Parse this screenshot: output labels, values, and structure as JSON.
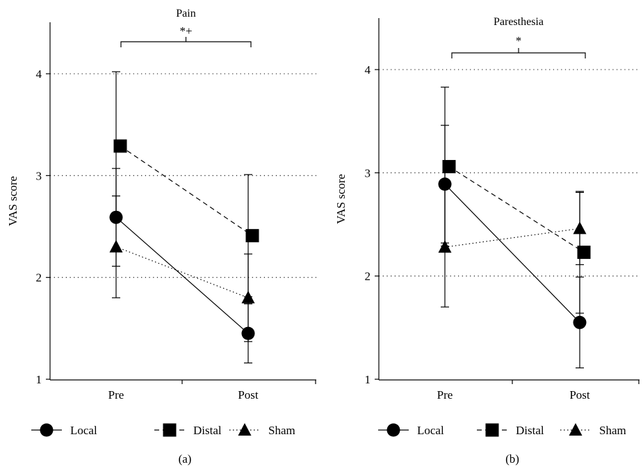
{
  "chart_data": [
    {
      "type": "line",
      "panel_label": "(a)",
      "title": "Pain",
      "ylabel": "VAS score",
      "xlabel": "",
      "categories": [
        "Pre",
        "Post"
      ],
      "ylim": [
        1,
        4.5
      ],
      "yticks": [
        "1",
        "2",
        "3",
        "4"
      ],
      "grid": "dotted horizontal at 2, 3, 4",
      "significance": {
        "label": "*+",
        "from": "Pre",
        "to": "Post"
      },
      "series": [
        {
          "name": "Local",
          "marker": "circle",
          "line": "solid",
          "values": [
            2.59,
            1.45
          ],
          "errors": [
            0.48,
            0.29
          ]
        },
        {
          "name": "Distal",
          "marker": "square",
          "line": "dashed",
          "values": [
            3.29,
            2.41
          ],
          "errors": [
            0.73,
            0.6
          ]
        },
        {
          "name": "Sham",
          "marker": "triangle",
          "line": "dotted",
          "values": [
            2.3,
            1.8
          ],
          "errors": [
            0.5,
            0.43
          ]
        }
      ]
    },
    {
      "type": "line",
      "panel_label": "(b)",
      "title": "Paresthesia",
      "ylabel": "VAS score",
      "xlabel": "",
      "categories": [
        "Pre",
        "Post"
      ],
      "ylim": [
        1,
        4.5
      ],
      "yticks": [
        "1",
        "2",
        "3",
        "4"
      ],
      "grid": "dotted horizontal at 2, 3, 4",
      "significance": {
        "label": "*",
        "from": "Pre",
        "to": "Post"
      },
      "series": [
        {
          "name": "Local",
          "marker": "circle",
          "line": "solid",
          "values": [
            2.89,
            1.55
          ],
          "errors": [
            0.57,
            0.44
          ]
        },
        {
          "name": "Distal",
          "marker": "square",
          "line": "dashed",
          "values": [
            3.06,
            2.23
          ],
          "errors": [
            0.77,
            0.59
          ]
        },
        {
          "name": "Sham",
          "marker": "triangle",
          "line": "dotted",
          "values": [
            2.28,
            2.46
          ],
          "errors": [
            0.58,
            0.35
          ]
        }
      ]
    }
  ]
}
